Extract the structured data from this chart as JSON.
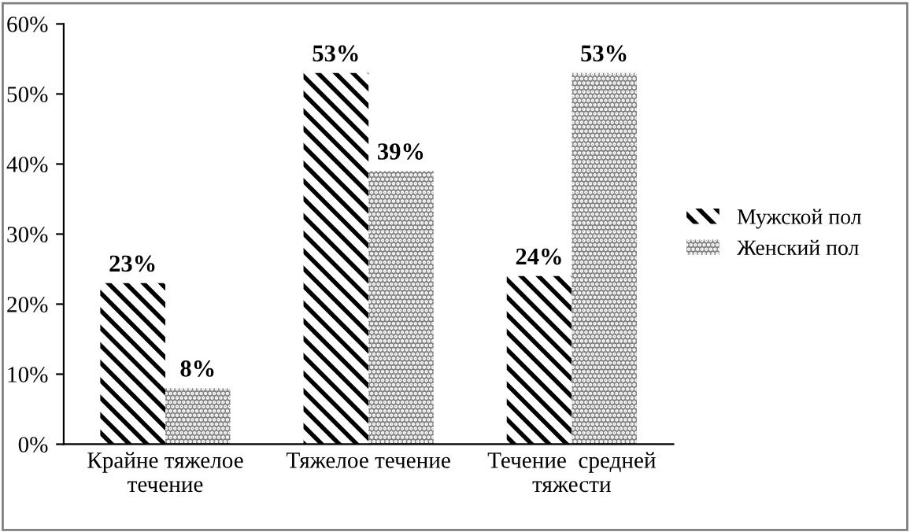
{
  "chart_data": {
    "type": "bar",
    "categories": [
      "Крайне тяжелое\nтечение",
      "Тяжелое течение",
      "Течение  средней\nтяжести"
    ],
    "series": [
      {
        "name": "Мужской пол",
        "color": "#000000",
        "values": [
          23,
          53,
          24
        ],
        "value_labels": [
          "23%",
          "53%",
          "24%"
        ]
      },
      {
        "name": "Женский пол",
        "color": "#808080",
        "values": [
          8,
          39,
          53
        ],
        "value_labels": [
          "8%",
          "39%",
          "53%"
        ]
      }
    ],
    "ylim": [
      0,
      60
    ],
    "yticks": [
      {
        "value": 0,
        "label": "0%"
      },
      {
        "value": 10,
        "label": "10%"
      },
      {
        "value": 20,
        "label": "20%"
      },
      {
        "value": 30,
        "label": "30%"
      },
      {
        "value": 40,
        "label": "40%"
      },
      {
        "value": 50,
        "label": "50%"
      },
      {
        "value": 60,
        "label": "60%"
      }
    ],
    "grid": false,
    "legend": "right"
  }
}
